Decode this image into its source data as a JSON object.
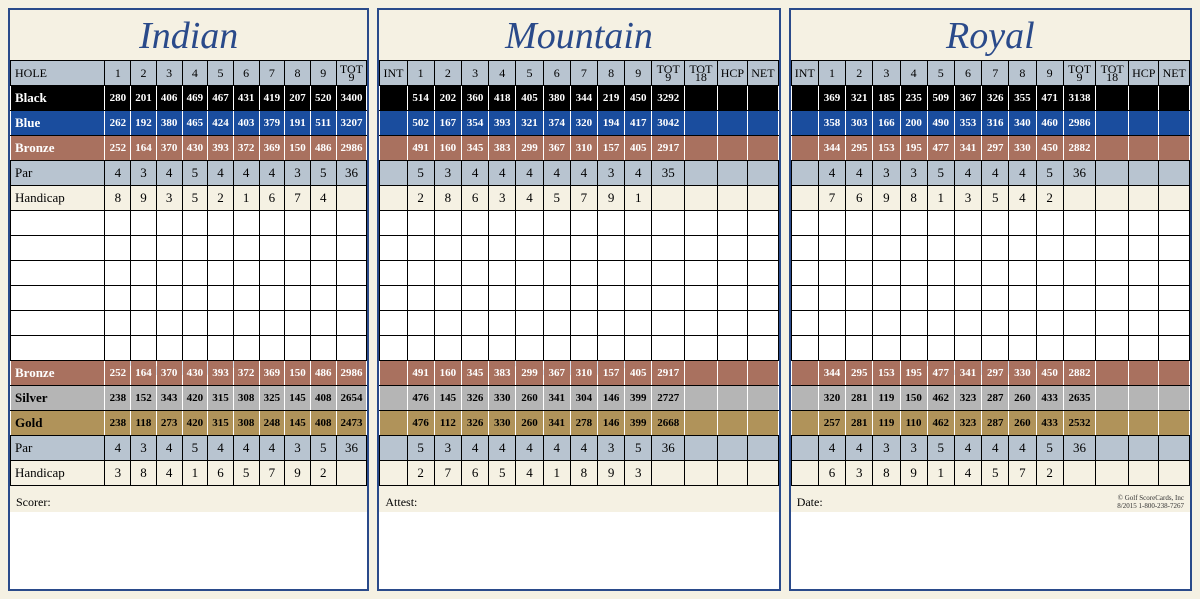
{
  "colors": {
    "background": "#f5f1e3",
    "border": "#2a4a8a",
    "title": "#2a4a8a",
    "black_row": "#000000",
    "blue_row": "#1a4d9e",
    "bronze_row": "#a9715f",
    "silver_row": "#b5b5b5",
    "gold_row": "#b0935a",
    "header_row": "#b8c4d0",
    "hcap_row": "#f5f1e3"
  },
  "labels": {
    "hole": "HOLE",
    "int": "INT",
    "tot9": "TOT\n9",
    "tot18": "TOT\n18",
    "hcp": "HCP",
    "net": "NET",
    "black": "Black",
    "blue": "Blue",
    "bronze": "Bronze",
    "par": "Par",
    "handicap": "Handicap",
    "silver": "Silver",
    "gold": "Gold",
    "scorer": "Scorer:",
    "attest": "Attest:",
    "date": "Date:",
    "copyright": "© Golf ScoreCards, Inc",
    "copy2": "8/2015   1-800-238-7267"
  },
  "holes": [
    "1",
    "2",
    "3",
    "4",
    "5",
    "6",
    "7",
    "8",
    "9"
  ],
  "cards": [
    {
      "title": "Indian",
      "layout": "first",
      "footer": "scorer",
      "rows_top": [
        {
          "style": "black",
          "label": "black",
          "v": [
            "280",
            "201",
            "406",
            "469",
            "467",
            "431",
            "419",
            "207",
            "520"
          ],
          "tot": "3400"
        },
        {
          "style": "blue",
          "label": "blue",
          "v": [
            "262",
            "192",
            "380",
            "465",
            "424",
            "403",
            "379",
            "191",
            "511"
          ],
          "tot": "3207"
        },
        {
          "style": "bronze",
          "label": "bronze",
          "v": [
            "252",
            "164",
            "370",
            "430",
            "393",
            "372",
            "369",
            "150",
            "486"
          ],
          "tot": "2986"
        },
        {
          "style": "par",
          "label": "par",
          "v": [
            "4",
            "3",
            "4",
            "5",
            "4",
            "4",
            "4",
            "3",
            "5"
          ],
          "tot": "36"
        },
        {
          "style": "hcap",
          "label": "handicap",
          "v": [
            "8",
            "9",
            "3",
            "5",
            "2",
            "1",
            "6",
            "7",
            "4"
          ],
          "tot": ""
        }
      ],
      "rows_bot": [
        {
          "style": "bronze",
          "label": "bronze",
          "v": [
            "252",
            "164",
            "370",
            "430",
            "393",
            "372",
            "369",
            "150",
            "486"
          ],
          "tot": "2986"
        },
        {
          "style": "silver",
          "label": "silver",
          "v": [
            "238",
            "152",
            "343",
            "420",
            "315",
            "308",
            "325",
            "145",
            "408"
          ],
          "tot": "2654"
        },
        {
          "style": "gold",
          "label": "gold",
          "v": [
            "238",
            "118",
            "273",
            "420",
            "315",
            "308",
            "248",
            "145",
            "408"
          ],
          "tot": "2473"
        },
        {
          "style": "par",
          "label": "par",
          "v": [
            "4",
            "3",
            "4",
            "5",
            "4",
            "4",
            "4",
            "3",
            "5"
          ],
          "tot": "36"
        },
        {
          "style": "hcap",
          "label": "handicap",
          "v": [
            "3",
            "8",
            "4",
            "1",
            "6",
            "5",
            "7",
            "9",
            "2"
          ],
          "tot": ""
        }
      ]
    },
    {
      "title": "Mountain",
      "layout": "other",
      "footer": "attest",
      "rows_top": [
        {
          "style": "black",
          "label": "black",
          "v": [
            "514",
            "202",
            "360",
            "418",
            "405",
            "380",
            "344",
            "219",
            "450"
          ],
          "tot": "3292"
        },
        {
          "style": "blue",
          "label": "blue",
          "v": [
            "502",
            "167",
            "354",
            "393",
            "321",
            "374",
            "320",
            "194",
            "417"
          ],
          "tot": "3042"
        },
        {
          "style": "bronze",
          "label": "bronze",
          "v": [
            "491",
            "160",
            "345",
            "383",
            "299",
            "367",
            "310",
            "157",
            "405"
          ],
          "tot": "2917"
        },
        {
          "style": "par",
          "label": "par",
          "v": [
            "5",
            "3",
            "4",
            "4",
            "4",
            "4",
            "4",
            "3",
            "4"
          ],
          "tot": "35"
        },
        {
          "style": "hcap",
          "label": "handicap",
          "v": [
            "2",
            "8",
            "6",
            "3",
            "4",
            "5",
            "7",
            "9",
            "1"
          ],
          "tot": ""
        }
      ],
      "rows_bot": [
        {
          "style": "bronze",
          "label": "bronze",
          "v": [
            "491",
            "160",
            "345",
            "383",
            "299",
            "367",
            "310",
            "157",
            "405"
          ],
          "tot": "2917"
        },
        {
          "style": "silver",
          "label": "silver",
          "v": [
            "476",
            "145",
            "326",
            "330",
            "260",
            "341",
            "304",
            "146",
            "399"
          ],
          "tot": "2727"
        },
        {
          "style": "gold",
          "label": "gold",
          "v": [
            "476",
            "112",
            "326",
            "330",
            "260",
            "341",
            "278",
            "146",
            "399"
          ],
          "tot": "2668"
        },
        {
          "style": "par",
          "label": "par",
          "v": [
            "5",
            "3",
            "4",
            "4",
            "4",
            "4",
            "4",
            "3",
            "5"
          ],
          "tot": "36"
        },
        {
          "style": "hcap",
          "label": "handicap",
          "v": [
            "2",
            "7",
            "6",
            "5",
            "4",
            "1",
            "8",
            "9",
            "3"
          ],
          "tot": ""
        }
      ]
    },
    {
      "title": "Royal",
      "layout": "other",
      "footer": "date",
      "show_copy": true,
      "rows_top": [
        {
          "style": "black",
          "label": "black",
          "v": [
            "369",
            "321",
            "185",
            "235",
            "509",
            "367",
            "326",
            "355",
            "471"
          ],
          "tot": "3138"
        },
        {
          "style": "blue",
          "label": "blue",
          "v": [
            "358",
            "303",
            "166",
            "200",
            "490",
            "353",
            "316",
            "340",
            "460"
          ],
          "tot": "2986"
        },
        {
          "style": "bronze",
          "label": "bronze",
          "v": [
            "344",
            "295",
            "153",
            "195",
            "477",
            "341",
            "297",
            "330",
            "450"
          ],
          "tot": "2882"
        },
        {
          "style": "par",
          "label": "par",
          "v": [
            "4",
            "4",
            "3",
            "3",
            "5",
            "4",
            "4",
            "4",
            "5"
          ],
          "tot": "36"
        },
        {
          "style": "hcap",
          "label": "handicap",
          "v": [
            "7",
            "6",
            "9",
            "8",
            "1",
            "3",
            "5",
            "4",
            "2"
          ],
          "tot": ""
        }
      ],
      "rows_bot": [
        {
          "style": "bronze",
          "label": "bronze",
          "v": [
            "344",
            "295",
            "153",
            "195",
            "477",
            "341",
            "297",
            "330",
            "450"
          ],
          "tot": "2882"
        },
        {
          "style": "silver",
          "label": "silver",
          "v": [
            "320",
            "281",
            "119",
            "150",
            "462",
            "323",
            "287",
            "260",
            "433"
          ],
          "tot": "2635"
        },
        {
          "style": "gold",
          "label": "gold",
          "v": [
            "257",
            "281",
            "119",
            "110",
            "462",
            "323",
            "287",
            "260",
            "433"
          ],
          "tot": "2532"
        },
        {
          "style": "par",
          "label": "par",
          "v": [
            "4",
            "4",
            "3",
            "3",
            "5",
            "4",
            "4",
            "4",
            "5"
          ],
          "tot": "36"
        },
        {
          "style": "hcap",
          "label": "handicap",
          "v": [
            "6",
            "3",
            "8",
            "9",
            "1",
            "4",
            "5",
            "7",
            "2"
          ],
          "tot": ""
        }
      ]
    }
  ]
}
